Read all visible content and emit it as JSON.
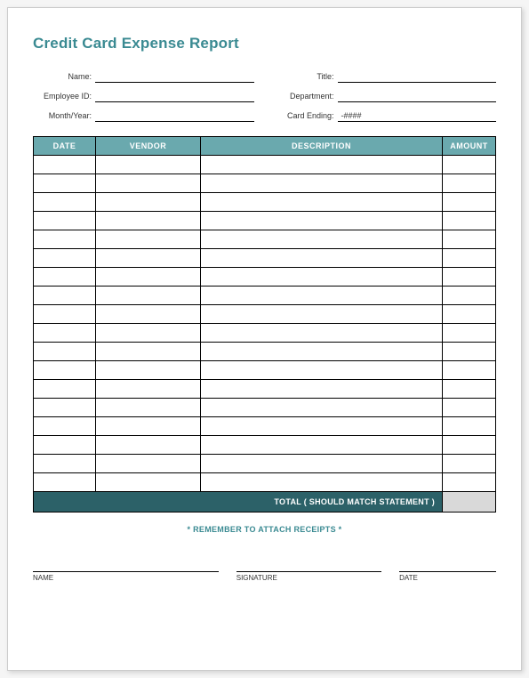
{
  "title": "Credit Card Expense Report",
  "info": {
    "left": [
      {
        "label": "Name:",
        "value": ""
      },
      {
        "label": "Employee ID:",
        "value": ""
      },
      {
        "label": "Month/Year:",
        "value": ""
      }
    ],
    "right": [
      {
        "label": "Title:",
        "value": ""
      },
      {
        "label": "Department:",
        "value": ""
      },
      {
        "label": "Card Ending:",
        "value": "-####"
      }
    ]
  },
  "table": {
    "columns": [
      "DATE",
      "VENDOR",
      "DESCRIPTION",
      "AMOUNT"
    ],
    "row_count": 18,
    "total_label": "TOTAL ( SHOULD MATCH STATEMENT )",
    "total_value": "",
    "header_bg": "#6aa9ae",
    "header_fg": "#ffffff",
    "total_bg": "#2c6168",
    "total_fg": "#ffffff",
    "total_value_bg": "#d9d9d9"
  },
  "reminder": "* REMEMBER TO ATTACH RECEIPTS *",
  "signatures": [
    "NAME",
    "SIGNATURE",
    "DATE"
  ],
  "colors": {
    "accent": "#3a8a92",
    "page_bg": "#ffffff"
  }
}
